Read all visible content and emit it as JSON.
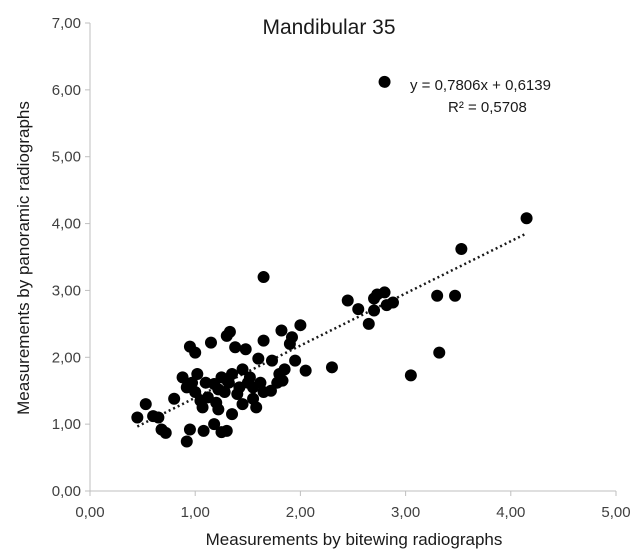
{
  "chart_data": {
    "type": "scatter",
    "title": "Mandibular 35",
    "xlabel": "Measurements by bitewing radiographs",
    "ylabel": "Measurements by panoramic radiographs",
    "xlim": [
      0,
      5
    ],
    "ylim": [
      0,
      7
    ],
    "xticks": [
      "0,00",
      "1,00",
      "2,00",
      "3,00",
      "4,00",
      "5,00"
    ],
    "yticks": [
      "0,00",
      "1,00",
      "2,00",
      "3,00",
      "4,00",
      "5,00",
      "6,00",
      "7,00"
    ],
    "grid": false,
    "legend": "top-right",
    "marker_color": "#000000",
    "trendline": {
      "type": "linear",
      "slope": 0.7806,
      "intercept": 0.6139,
      "x_range": [
        0.45,
        4.15
      ],
      "style": "dotted",
      "equation_label": "y = 0,7806x + 0,6139",
      "r2_label": "R² = 0,5708"
    },
    "points": [
      [
        0.45,
        1.1
      ],
      [
        0.53,
        1.3
      ],
      [
        0.6,
        1.12
      ],
      [
        0.65,
        1.1
      ],
      [
        0.68,
        0.92
      ],
      [
        0.72,
        0.87
      ],
      [
        0.8,
        1.38
      ],
      [
        0.88,
        1.7
      ],
      [
        0.92,
        1.55
      ],
      [
        0.92,
        0.74
      ],
      [
        0.95,
        0.92
      ],
      [
        0.95,
        2.16
      ],
      [
        0.97,
        1.62
      ],
      [
        1.0,
        1.48
      ],
      [
        1.0,
        2.07
      ],
      [
        1.02,
        1.75
      ],
      [
        1.05,
        1.35
      ],
      [
        1.07,
        1.25
      ],
      [
        1.08,
        0.9
      ],
      [
        1.1,
        1.62
      ],
      [
        1.12,
        1.4
      ],
      [
        1.15,
        2.22
      ],
      [
        1.18,
        1.0
      ],
      [
        1.18,
        1.6
      ],
      [
        1.2,
        1.32
      ],
      [
        1.22,
        1.52
      ],
      [
        1.22,
        1.22
      ],
      [
        1.25,
        1.7
      ],
      [
        1.25,
        0.88
      ],
      [
        1.28,
        1.48
      ],
      [
        1.3,
        2.32
      ],
      [
        1.3,
        0.9
      ],
      [
        1.32,
        1.62
      ],
      [
        1.33,
        2.38
      ],
      [
        1.35,
        1.75
      ],
      [
        1.35,
        1.15
      ],
      [
        1.38,
        2.15
      ],
      [
        1.4,
        1.45
      ],
      [
        1.42,
        1.55
      ],
      [
        1.45,
        1.82
      ],
      [
        1.45,
        1.3
      ],
      [
        1.48,
        2.12
      ],
      [
        1.5,
        1.62
      ],
      [
        1.52,
        1.7
      ],
      [
        1.55,
        1.38
      ],
      [
        1.55,
        1.55
      ],
      [
        1.58,
        1.25
      ],
      [
        1.6,
        1.98
      ],
      [
        1.62,
        1.62
      ],
      [
        1.65,
        1.48
      ],
      [
        1.65,
        2.25
      ],
      [
        1.65,
        3.2
      ],
      [
        1.72,
        1.5
      ],
      [
        1.73,
        1.95
      ],
      [
        1.78,
        1.62
      ],
      [
        1.8,
        1.75
      ],
      [
        1.82,
        2.4
      ],
      [
        1.83,
        1.65
      ],
      [
        1.85,
        1.82
      ],
      [
        1.9,
        2.2
      ],
      [
        1.92,
        2.3
      ],
      [
        1.95,
        1.95
      ],
      [
        2.0,
        2.48
      ],
      [
        2.05,
        1.8
      ],
      [
        2.3,
        1.85
      ],
      [
        2.45,
        2.85
      ],
      [
        2.55,
        2.72
      ],
      [
        2.65,
        2.5
      ],
      [
        2.7,
        2.7
      ],
      [
        2.7,
        2.88
      ],
      [
        2.73,
        2.94
      ],
      [
        2.8,
        2.97
      ],
      [
        2.82,
        2.78
      ],
      [
        2.88,
        2.82
      ],
      [
        3.05,
        1.73
      ],
      [
        3.3,
        2.92
      ],
      [
        3.32,
        2.07
      ],
      [
        3.47,
        2.92
      ],
      [
        3.53,
        3.62
      ],
      [
        4.15,
        4.08
      ],
      [
        2.8,
        6.12
      ]
    ]
  }
}
